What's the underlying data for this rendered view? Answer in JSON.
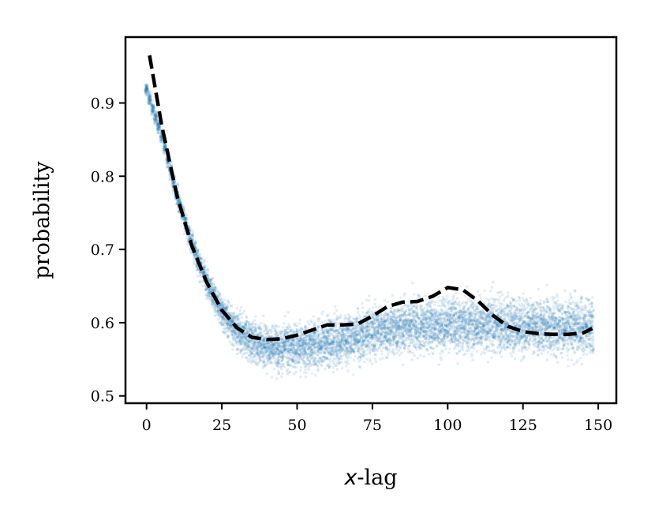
{
  "chart_data": {
    "type": "scatter",
    "xlabel_var": "x",
    "xlabel_suffix": "-lag",
    "ylabel": "probability",
    "xlim": [
      -7,
      156
    ],
    "ylim": [
      0.49,
      0.99
    ],
    "xticks": [
      0,
      25,
      50,
      75,
      100,
      125,
      150
    ],
    "yticks": [
      0.5,
      0.6,
      0.7,
      0.8,
      0.9
    ],
    "xtick_labels": [
      "0",
      "25",
      "50",
      "75",
      "100",
      "125",
      "150"
    ],
    "ytick_labels": [
      "0.5",
      "0.6",
      "0.7",
      "0.8",
      "0.9"
    ],
    "grid": false,
    "series": [
      {
        "kind": "scatter",
        "color": "#1f77b4",
        "opacity": 0.13,
        "x_range": [
          0,
          148
        ],
        "trend": [
          [
            0,
            0.918
          ],
          [
            5,
            0.855
          ],
          [
            10,
            0.775
          ],
          [
            15,
            0.71
          ],
          [
            20,
            0.655
          ],
          [
            25,
            0.615
          ],
          [
            30,
            0.59
          ],
          [
            35,
            0.575
          ],
          [
            40,
            0.568
          ],
          [
            45,
            0.566
          ],
          [
            50,
            0.567
          ],
          [
            55,
            0.569
          ],
          [
            60,
            0.573
          ],
          [
            65,
            0.577
          ],
          [
            70,
            0.582
          ],
          [
            75,
            0.587
          ],
          [
            80,
            0.591
          ],
          [
            85,
            0.594
          ],
          [
            90,
            0.596
          ],
          [
            95,
            0.597
          ],
          [
            100,
            0.598
          ],
          [
            105,
            0.598
          ],
          [
            110,
            0.597
          ],
          [
            115,
            0.597
          ],
          [
            120,
            0.596
          ],
          [
            125,
            0.596
          ],
          [
            130,
            0.595
          ],
          [
            135,
            0.595
          ],
          [
            140,
            0.594
          ],
          [
            145,
            0.594
          ],
          [
            148,
            0.594
          ]
        ],
        "spread": [
          [
            0,
            0.006
          ],
          [
            10,
            0.008
          ],
          [
            20,
            0.012
          ],
          [
            30,
            0.018
          ],
          [
            50,
            0.022
          ],
          [
            80,
            0.024
          ],
          [
            120,
            0.026
          ],
          [
            148,
            0.026
          ]
        ]
      },
      {
        "kind": "line",
        "style": "dashed",
        "color": "#000000",
        "x": [
          1,
          5,
          10,
          15,
          20,
          25,
          30,
          35,
          40,
          45,
          50,
          55,
          60,
          65,
          70,
          75,
          80,
          85,
          90,
          95,
          100,
          105,
          110,
          115,
          120,
          125,
          130,
          135,
          140,
          145,
          148
        ],
        "y": [
          0.965,
          0.87,
          0.775,
          0.705,
          0.655,
          0.617,
          0.593,
          0.58,
          0.577,
          0.578,
          0.583,
          0.59,
          0.597,
          0.597,
          0.598,
          0.609,
          0.622,
          0.628,
          0.629,
          0.636,
          0.648,
          0.645,
          0.63,
          0.61,
          0.595,
          0.588,
          0.585,
          0.584,
          0.584,
          0.586,
          0.592
        ]
      }
    ]
  }
}
